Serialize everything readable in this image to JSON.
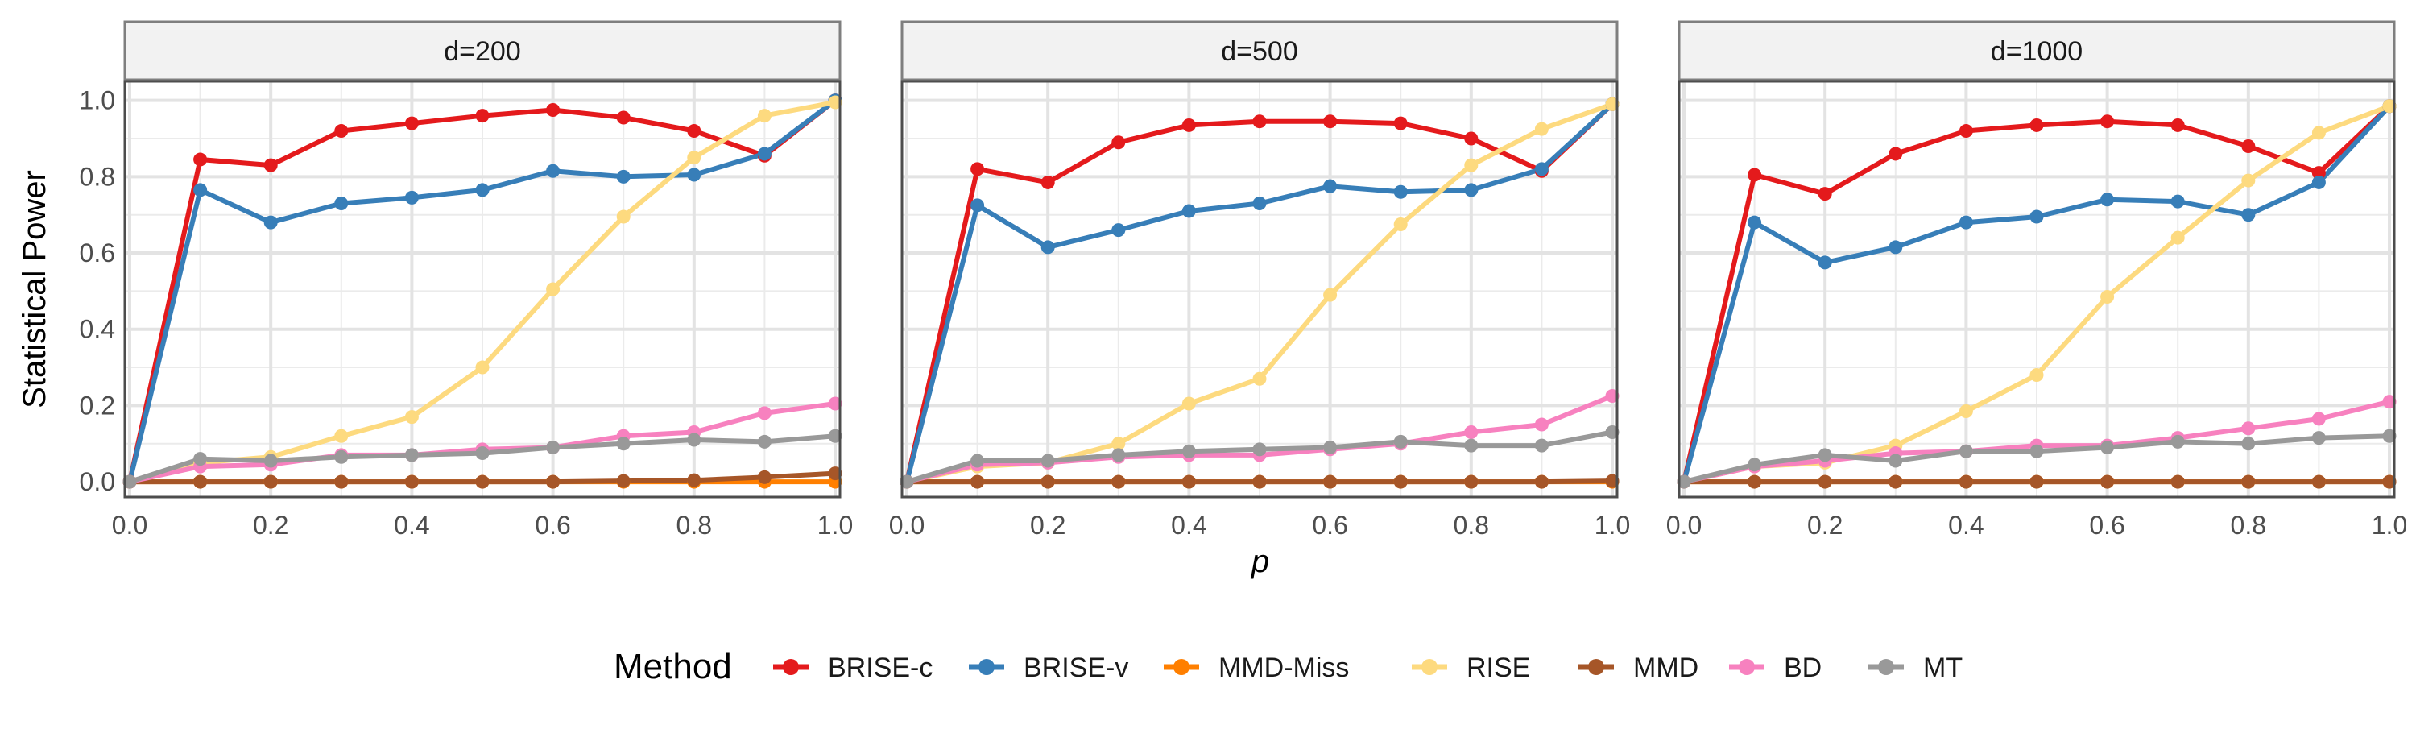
{
  "chart_data": {
    "type": "line",
    "facet_label_prefix": "",
    "facets": [
      "d=200",
      "d=500",
      "d=1000"
    ],
    "ylabel": "Statistical Power",
    "xlabel": "p",
    "xlim": [
      0,
      1
    ],
    "ylim": [
      -0.04,
      1.05
    ],
    "xticks": [
      "0.0",
      "0.2",
      "0.4",
      "0.6",
      "0.8",
      "1.0"
    ],
    "yticks": [
      "0.0",
      "0.2",
      "0.4",
      "0.6",
      "0.8",
      "1.0"
    ],
    "grid": true,
    "legend": {
      "title": "Method",
      "position": "bottom"
    },
    "x": [
      0.0,
      0.1,
      0.2,
      0.3,
      0.4,
      0.5,
      0.6,
      0.7,
      0.8,
      0.9,
      1.0
    ],
    "series": [
      {
        "name": "BRISE-c",
        "color": "#E41A1C",
        "values": [
          [
            0.0,
            0.845,
            0.83,
            0.92,
            0.94,
            0.96,
            0.975,
            0.955,
            0.92,
            0.855,
            1.0
          ],
          [
            0.0,
            0.82,
            0.785,
            0.89,
            0.935,
            0.945,
            0.945,
            0.94,
            0.9,
            0.815,
            0.99
          ],
          [
            0.0,
            0.805,
            0.755,
            0.86,
            0.92,
            0.935,
            0.945,
            0.935,
            0.88,
            0.81,
            0.985
          ]
        ]
      },
      {
        "name": "BRISE-v",
        "color": "#377EB8",
        "values": [
          [
            0.0,
            0.765,
            0.68,
            0.73,
            0.745,
            0.765,
            0.815,
            0.8,
            0.805,
            0.86,
            1.0
          ],
          [
            0.0,
            0.725,
            0.615,
            0.66,
            0.71,
            0.73,
            0.775,
            0.76,
            0.765,
            0.82,
            0.99
          ],
          [
            0.0,
            0.68,
            0.575,
            0.615,
            0.68,
            0.695,
            0.74,
            0.735,
            0.7,
            0.785,
            0.985
          ]
        ]
      },
      {
        "name": "MMD-Miss",
        "color": "#FF7F00",
        "values": [
          [
            0.0,
            0.0,
            0.0,
            0.0,
            0.0,
            0.0,
            0.0,
            0.0,
            0.0,
            0.0,
            0.0
          ],
          [
            0.0,
            0.0,
            0.0,
            0.0,
            0.0,
            0.0,
            0.0,
            0.0,
            0.0,
            0.0,
            0.0
          ],
          [
            0.0,
            0.0,
            0.0,
            0.0,
            0.0,
            0.0,
            0.0,
            0.0,
            0.0,
            0.0,
            0.0
          ]
        ]
      },
      {
        "name": "RISE",
        "color": "#FDDA7F",
        "values": [
          [
            0.0,
            0.05,
            0.065,
            0.12,
            0.17,
            0.3,
            0.505,
            0.695,
            0.85,
            0.96,
            0.995
          ],
          [
            0.0,
            0.04,
            0.05,
            0.1,
            0.205,
            0.27,
            0.49,
            0.675,
            0.83,
            0.925,
            0.99
          ],
          [
            0.0,
            0.04,
            0.05,
            0.095,
            0.185,
            0.28,
            0.485,
            0.64,
            0.79,
            0.915,
            0.985
          ]
        ]
      },
      {
        "name": "MMD",
        "color": "#A65628",
        "values": [
          [
            0.0,
            0.0,
            0.0,
            0.0,
            0.0,
            0.0,
            0.0,
            0.002,
            0.004,
            0.012,
            0.022
          ],
          [
            0.0,
            0.0,
            0.0,
            0.0,
            0.0,
            0.0,
            0.0,
            0.0,
            0.0,
            0.0,
            0.002
          ],
          [
            0.0,
            0.0,
            0.0,
            0.0,
            0.0,
            0.0,
            0.0,
            0.0,
            0.0,
            0.0,
            0.0
          ]
        ]
      },
      {
        "name": "BD",
        "color": "#F781BF",
        "values": [
          [
            0.0,
            0.04,
            0.045,
            0.07,
            0.07,
            0.085,
            0.09,
            0.12,
            0.13,
            0.18,
            0.205
          ],
          [
            0.0,
            0.045,
            0.05,
            0.065,
            0.07,
            0.07,
            0.085,
            0.1,
            0.13,
            0.15,
            0.225
          ],
          [
            0.0,
            0.04,
            0.055,
            0.075,
            0.08,
            0.095,
            0.095,
            0.115,
            0.14,
            0.165,
            0.21
          ]
        ]
      },
      {
        "name": "MT",
        "color": "#999999",
        "values": [
          [
            0.0,
            0.06,
            0.055,
            0.065,
            0.07,
            0.075,
            0.09,
            0.1,
            0.11,
            0.105,
            0.12
          ],
          [
            0.0,
            0.055,
            0.055,
            0.07,
            0.08,
            0.085,
            0.09,
            0.105,
            0.095,
            0.095,
            0.13
          ],
          [
            0.0,
            0.045,
            0.07,
            0.055,
            0.08,
            0.08,
            0.09,
            0.105,
            0.1,
            0.115,
            0.12
          ]
        ]
      }
    ]
  }
}
